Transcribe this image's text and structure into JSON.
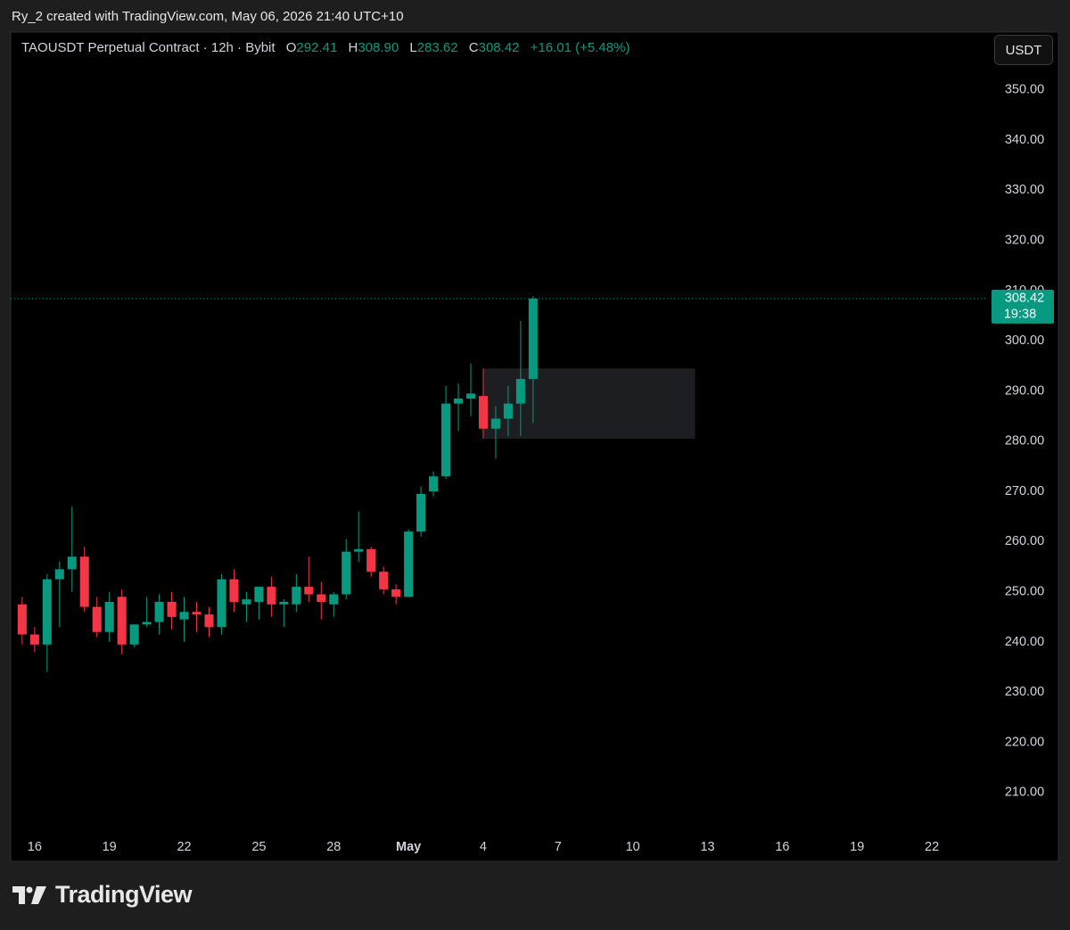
{
  "header": {
    "credit": "Ry_2 created with TradingView.com, May 06, 2026 21:40 UTC+10"
  },
  "chart_data": {
    "type": "candlestick",
    "title": "TAOUSDT Perpetual Contract · 12h · Bybit",
    "legend": {
      "labels": [
        "O",
        "H",
        "L",
        "C"
      ],
      "values": [
        "292.41",
        "308.90",
        "283.62",
        "308.42"
      ],
      "change": "+16.01 (+5.48%)"
    },
    "currency": "USDT",
    "countdown": "19:38",
    "x": [
      15.5,
      16,
      16.5,
      17,
      17.5,
      18,
      18.5,
      19,
      19.5,
      20,
      20.5,
      21,
      21.5,
      22,
      22.5,
      23,
      23.5,
      24,
      24.5,
      25,
      25.5,
      26,
      26.5,
      27,
      27.5,
      28,
      28.5,
      29,
      29.5,
      30,
      30.5,
      31,
      31.5,
      32,
      32.5,
      33,
      33.5,
      34,
      34.5,
      35,
      35.5,
      36
    ],
    "open": [
      247.5,
      241.5,
      239.5,
      252.5,
      254.5,
      257,
      247,
      242,
      249,
      239.5,
      243.5,
      244,
      248,
      244.5,
      246,
      245.5,
      243,
      252.5,
      247.5,
      248,
      251,
      247.5,
      247.5,
      251,
      249.5,
      247.5,
      249.5,
      258,
      258.5,
      254,
      250.5,
      249,
      262,
      270,
      273,
      287.5,
      288.5,
      289,
      282.5,
      284.5,
      287.5,
      292.41
    ],
    "high": [
      249,
      243,
      253.5,
      256,
      267,
      259,
      249,
      250,
      250.5,
      243.5,
      249,
      249.5,
      250,
      249,
      248,
      247,
      253.5,
      254.5,
      250,
      251,
      253,
      248.5,
      253.5,
      257,
      252,
      250,
      260.5,
      266,
      259,
      255,
      251.5,
      262.5,
      271,
      274,
      291,
      291.5,
      295.5,
      294.5,
      287,
      291,
      304,
      308.9
    ],
    "low": [
      239.5,
      238,
      234,
      243,
      250,
      246,
      241,
      240,
      237.5,
      239,
      243,
      241.5,
      242.5,
      240,
      242,
      241,
      241.5,
      246,
      244,
      244.5,
      245,
      243,
      246,
      248,
      244.5,
      245,
      248.5,
      256,
      253,
      249.5,
      247.5,
      249,
      261,
      269,
      272.5,
      282,
      285,
      280.5,
      276.5,
      281,
      281,
      283.62
    ],
    "close": [
      241.5,
      239.5,
      252.5,
      254.5,
      257,
      247,
      242,
      248,
      239.5,
      243.5,
      244,
      248,
      245,
      246,
      245.5,
      243,
      252.5,
      248,
      248.5,
      251,
      247.5,
      248,
      251,
      249.5,
      248,
      249.5,
      258,
      258.5,
      254,
      250.5,
      249,
      262,
      269.5,
      273,
      287.5,
      288.5,
      289.5,
      282.5,
      284.5,
      287.5,
      292.4,
      308.42
    ],
    "up_color": "#089981",
    "down_color": "#f23645",
    "zone": {
      "x": [
        34,
        42.5
      ],
      "y": [
        280.5,
        294.5
      ],
      "color": "#1c1e21"
    },
    "ylim": [
      202.7,
      361.5
    ],
    "yticks": [
      {
        "value": 210,
        "label": "210.00"
      },
      {
        "value": 220,
        "label": "220.00"
      },
      {
        "value": 230,
        "label": "230.00"
      },
      {
        "value": 240,
        "label": "240.00"
      },
      {
        "value": 250,
        "label": "250.00"
      },
      {
        "value": 260,
        "label": "260.00"
      },
      {
        "value": 270,
        "label": "270.00"
      },
      {
        "value": 280,
        "label": "280.00"
      },
      {
        "value": 290,
        "label": "290.00"
      },
      {
        "value": 300,
        "label": "300.00"
      },
      {
        "value": 310,
        "label": "310.00"
      },
      {
        "value": 320,
        "label": "320.00"
      },
      {
        "value": 330,
        "label": "330.00"
      },
      {
        "value": 340,
        "label": "340.00"
      },
      {
        "value": 350,
        "label": "350.00"
      }
    ],
    "xlim": [
      15.04,
      54.25
    ],
    "xticks": [
      16,
      19,
      22,
      25,
      28,
      {
        "value": 31,
        "label": "May"
      },
      {
        "value": 34,
        "label": "4"
      },
      {
        "value": 37,
        "label": "7"
      },
      {
        "value": 40,
        "label": "10"
      },
      {
        "value": 43,
        "label": "13"
      },
      {
        "value": 46,
        "label": "16"
      },
      {
        "value": 49,
        "label": "19"
      },
      {
        "value": 52,
        "label": "22"
      }
    ],
    "grid": false
  },
  "footer": {
    "brand": "TradingView"
  }
}
